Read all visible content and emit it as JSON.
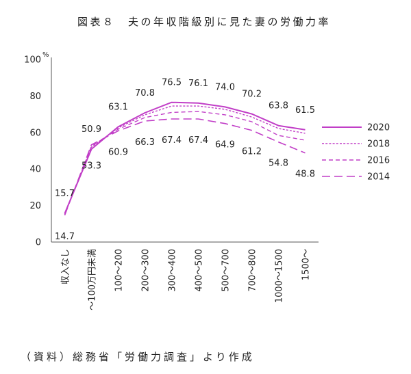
{
  "colors": {
    "series": "#c13ec7",
    "axis": "#555555",
    "text": "#222222"
  },
  "source_note": "（資料）総務省「労働力調査」より作成",
  "chart_data": {
    "type": "line",
    "title": "図表８　夫の年収階級別に見た妻の労働力率",
    "y_unit": "%",
    "ylim": [
      0,
      100
    ],
    "yticks": [
      0,
      20,
      40,
      60,
      80,
      100
    ],
    "grid": false,
    "legend_position": "right",
    "categories": [
      "収入なし",
      "～100万円未満",
      "100～200",
      "200～300",
      "300～400",
      "400～500",
      "500～700",
      "700～800",
      "1000～1500",
      "1500～"
    ],
    "series": [
      {
        "name": "2020",
        "line_style": "solid",
        "data_labels": "above",
        "values": [
          15.7,
          50.9,
          63.1,
          70.8,
          76.5,
          76.1,
          74.0,
          70.2,
          63.8,
          61.5
        ]
      },
      {
        "name": "2018",
        "line_style": "dotted",
        "data_labels": "none",
        "values": [
          15.3,
          52.0,
          62.5,
          69.7,
          74.5,
          74.5,
          72.7,
          68.5,
          62.2,
          59.6
        ]
      },
      {
        "name": "2016",
        "line_style": "dashed",
        "data_labels": "none",
        "values": [
          15.0,
          52.5,
          61.8,
          68.2,
          71.0,
          71.5,
          69.7,
          65.9,
          58.4,
          55.8
        ]
      },
      {
        "name": "2014",
        "line_style": "long-dashed",
        "data_labels": "below",
        "values": [
          14.7,
          53.3,
          60.9,
          66.3,
          67.4,
          67.4,
          64.9,
          61.2,
          54.8,
          48.8
        ]
      }
    ]
  }
}
